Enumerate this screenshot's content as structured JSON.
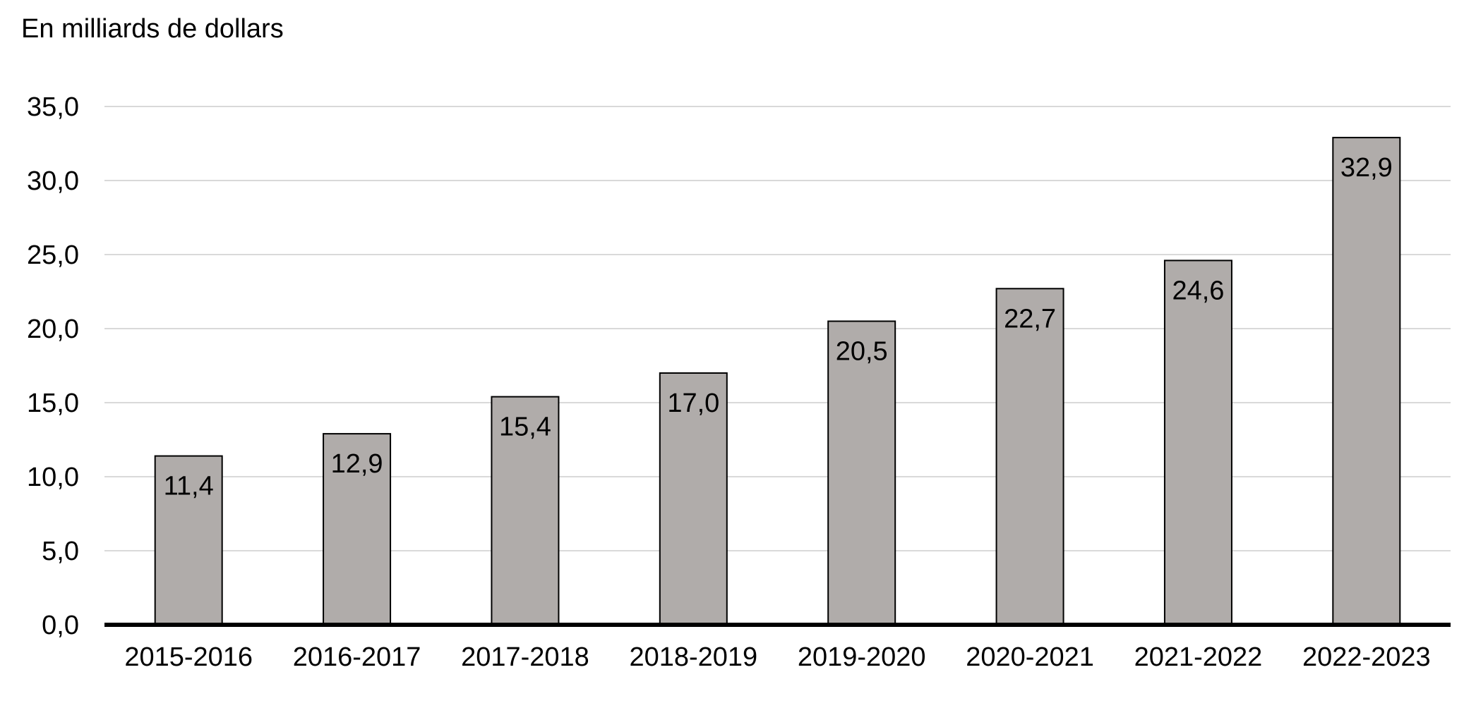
{
  "chart_data": {
    "type": "bar",
    "title": "",
    "unit_label": "En milliards de dollars",
    "xlabel": "",
    "ylabel": "",
    "categories": [
      "2015-2016",
      "2016-2017",
      "2017-2018",
      "2018-2019",
      "2019-2020",
      "2020-2021",
      "2021-2022",
      "2022-2023"
    ],
    "values": [
      11.4,
      12.9,
      15.4,
      17.0,
      20.5,
      22.7,
      24.6,
      32.9
    ],
    "value_labels": [
      "11,4",
      "12,9",
      "15,4",
      "17,0",
      "20,5",
      "22,7",
      "24,6",
      "32,9"
    ],
    "ylim": [
      0,
      35
    ],
    "yticks": [
      0,
      5,
      10,
      15,
      20,
      25,
      30,
      35
    ],
    "ytick_labels": [
      "0,0",
      "5,0",
      "10,0",
      "15,0",
      "20,0",
      "25,0",
      "30,0",
      "35,0"
    ],
    "grid": true,
    "legend": "none",
    "colors": {
      "bar_fill": "#b0acaa",
      "bar_stroke": "#000000",
      "grid": "#d9d9d9",
      "axis": "#000000"
    }
  }
}
